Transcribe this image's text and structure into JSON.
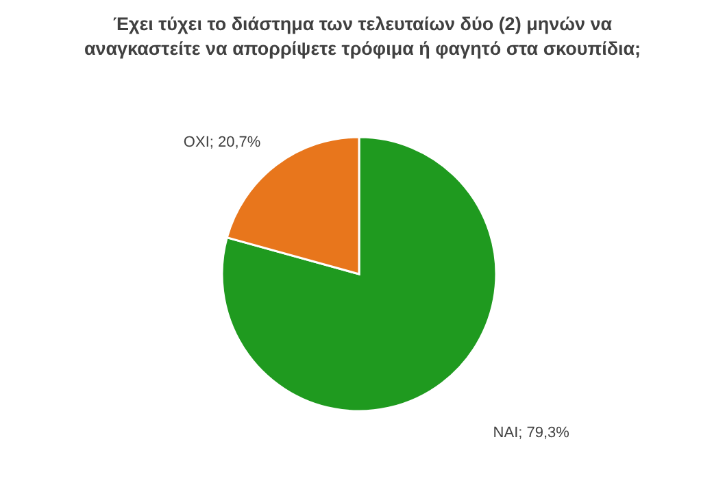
{
  "chart_data": {
    "type": "pie",
    "title": "Έχει τύχει το διάστημα των τελευταίων δύο (2) μηνών να αναγκαστείτε να απορρίψετε τρόφιμα ή φαγητό στα σκουπίδια;",
    "categories": [
      "ΝΑΙ",
      "ΟΧΙ"
    ],
    "values": [
      79.3,
      20.7
    ],
    "colors": [
      "#1f9a1f",
      "#e8761c"
    ],
    "value_labels": [
      "; 79,3%",
      "; 20,7%"
    ]
  }
}
